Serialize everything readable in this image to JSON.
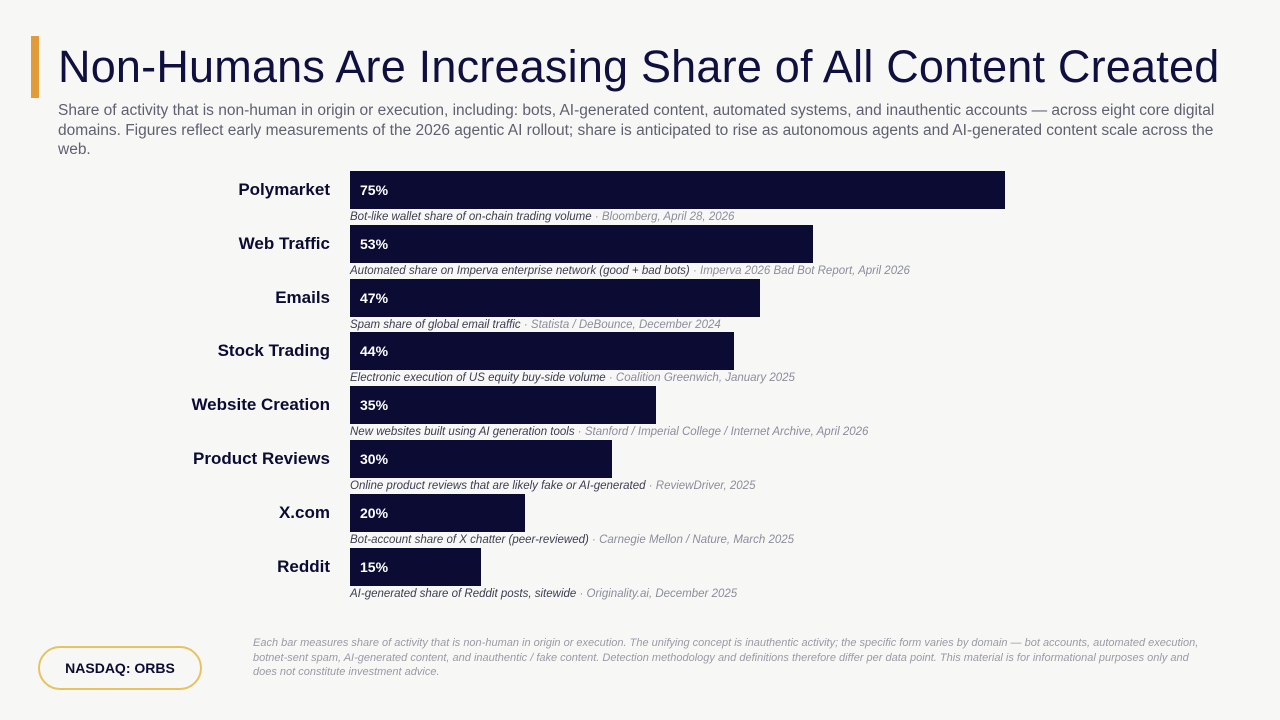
{
  "header": {
    "title": "Non-Humans Are Increasing Share of All Content Created",
    "subtitle": "Share of activity that is non-human in origin or execution, including: bots, AI-generated content, automated systems, and inauthentic accounts — across eight core digital domains. Figures reflect early measurements of the 2026 agentic AI rollout; share is anticipated to rise as autonomous agents and AI-generated content scale across the web.",
    "accent_color": "#e39b3a"
  },
  "chart_data": {
    "type": "bar",
    "orientation": "horizontal",
    "xlim": [
      0,
      100
    ],
    "bar_color": "#0b0b33",
    "categories": [
      "Polymarket",
      "Web Traffic",
      "Emails",
      "Stock Trading",
      "Website Creation",
      "Product Reviews",
      "X.com",
      "Reddit"
    ],
    "values": [
      75,
      53,
      47,
      44,
      35,
      30,
      20,
      15
    ],
    "value_labels": [
      "75%",
      "53%",
      "47%",
      "44%",
      "35%",
      "30%",
      "20%",
      "15%"
    ],
    "notes": [
      "Bot-like wallet share of on-chain trading volume",
      "Automated share on Imperva enterprise network (good + bad bots)",
      "Spam share of global email traffic",
      "Electronic execution of US equity buy-side volume",
      "New websites built using AI generation tools",
      "Online product reviews that are likely fake or AI-generated",
      "Bot-account share of X chatter (peer-reviewed)",
      "AI-generated share of Reddit posts, sitewide"
    ],
    "sources": [
      "Bloomberg, April 28, 2026",
      "Imperva 2026 Bad Bot Report, April 2026",
      "Statista / DeBounce, December 2024",
      "Coalition Greenwich, January 2025",
      "Stanford / Imperial College / Internet Archive, April 2026",
      "ReviewDriver, 2025",
      "Carnegie Mellon / Nature, March 2025",
      "Originality.ai, December 2025"
    ],
    "note_separator": " · "
  },
  "footer": {
    "ticker": "NASDAQ: ORBS",
    "ticker_border_color": "#e7c260",
    "footnote": "Each bar measures share of activity that is non-human in origin or execution. The unifying concept is inauthentic activity; the specific form varies by domain — bot accounts, automated execution, botnet-sent spam, AI-generated content, and inauthentic / fake content. Detection methodology and definitions therefore differ per data point. This material is for informational purposes only and does not constitute investment advice."
  }
}
